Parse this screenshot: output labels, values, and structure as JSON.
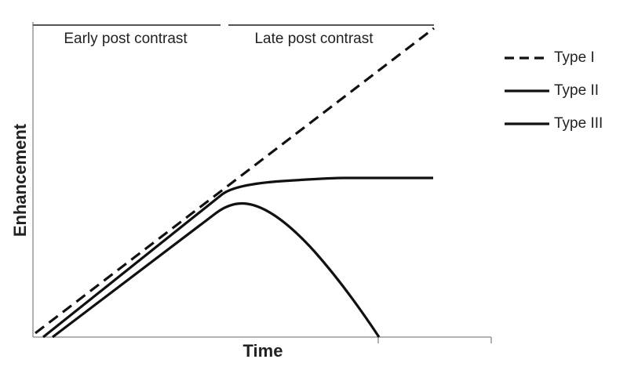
{
  "labels": {
    "y_axis": "Enhancement",
    "x_axis": "Time",
    "phases": [
      "Early post contrast",
      "Late post contrast"
    ]
  },
  "legend": [
    "Type I",
    "Type II",
    "Type III"
  ]
}
